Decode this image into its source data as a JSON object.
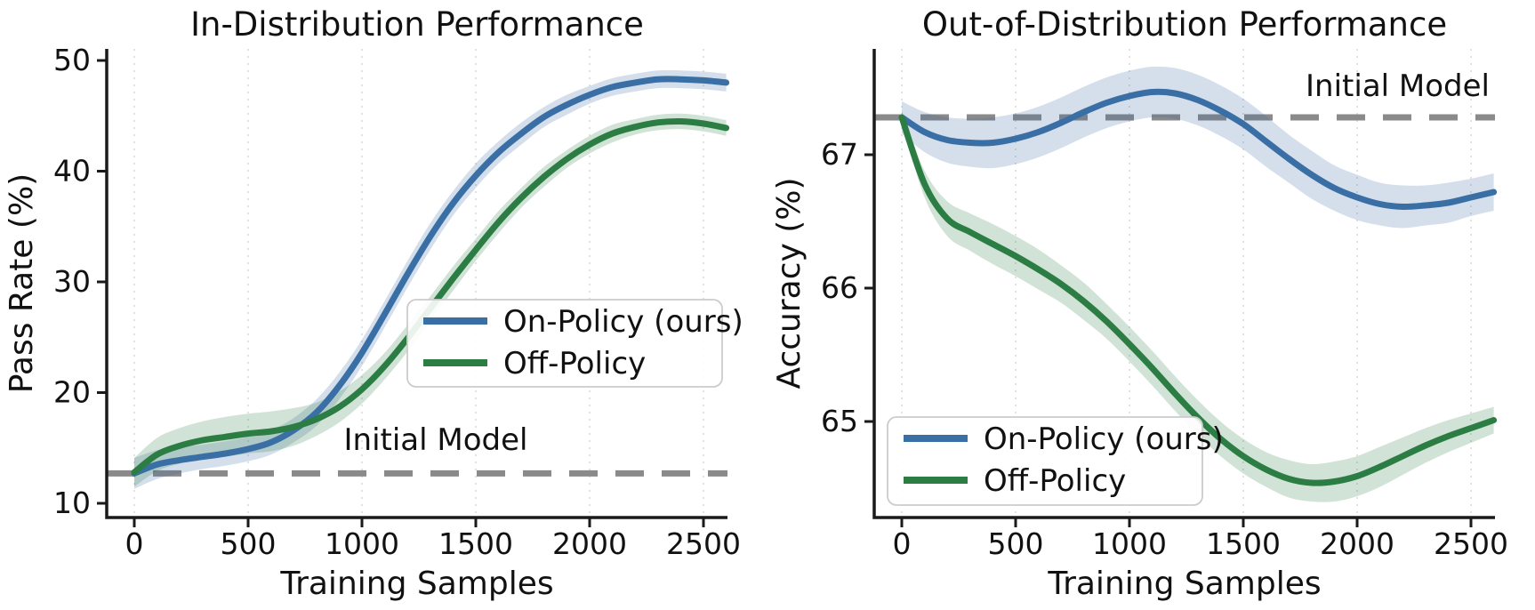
{
  "figure": {
    "background": "#ffffff",
    "description": "Two-panel line chart comparing on-policy and off-policy training"
  },
  "colors": {
    "on_policy": "#3A6FA5",
    "off_policy": "#2C7D43",
    "initial_model": "#8A8A8A",
    "grid": "#DBDBDB",
    "spine": "#1a1a1a",
    "text": "#111111",
    "legend_border": "#CCCCCC",
    "legend_background": "#FFFFFF"
  },
  "chart_data": [
    {
      "type": "line",
      "id": "in-distribution",
      "title": "In-Distribution Performance",
      "xlabel": "Training Samples",
      "ylabel": "Pass Rate (%)",
      "xticks": [
        0,
        500,
        1000,
        1500,
        2000,
        2500
      ],
      "yticks": [
        10,
        20,
        30,
        40,
        50
      ],
      "xlim": [
        -120,
        2605
      ],
      "ylim": [
        8.7,
        51.1
      ],
      "grid": "vertical-dotted",
      "legend_position": "center-right",
      "legend_entries": [
        "On-Policy (ours)",
        "Off-Policy"
      ],
      "annotation": {
        "text": "Initial Model",
        "value": 12.7
      },
      "x": [
        0,
        100,
        200,
        300,
        400,
        500,
        600,
        700,
        800,
        900,
        1000,
        1100,
        1200,
        1300,
        1400,
        1500,
        1600,
        1700,
        1800,
        1900,
        2000,
        2100,
        2200,
        2300,
        2400,
        2500,
        2600
      ],
      "series": [
        {
          "name": "On-Policy (ours)",
          "color_key": "on_policy",
          "y": [
            12.7,
            13.5,
            13.9,
            14.2,
            14.5,
            14.9,
            15.5,
            16.6,
            18.2,
            20.6,
            23.6,
            27.1,
            30.7,
            34.1,
            37.1,
            39.6,
            41.7,
            43.4,
            44.9,
            46.0,
            46.9,
            47.6,
            48.0,
            48.3,
            48.3,
            48.2,
            48.0
          ],
          "band_halfwidth": [
            1.4,
            1.3,
            1.2,
            1.1,
            1.1,
            1.1,
            1.1,
            1.1,
            1.2,
            1.2,
            1.2,
            1.2,
            1.2,
            1.2,
            1.1,
            1.1,
            1.0,
            1.0,
            0.9,
            0.9,
            0.8,
            0.8,
            0.8,
            0.8,
            0.8,
            0.8,
            0.8
          ]
        },
        {
          "name": "Off-Policy",
          "color_key": "off_policy",
          "y": [
            12.8,
            14.4,
            15.2,
            15.7,
            16.0,
            16.3,
            16.5,
            16.9,
            17.6,
            18.7,
            20.3,
            22.4,
            24.9,
            27.6,
            30.3,
            32.9,
            35.4,
            37.6,
            39.5,
            41.1,
            42.4,
            43.4,
            44.0,
            44.4,
            44.5,
            44.3,
            43.9
          ],
          "band_halfwidth": [
            1.3,
            1.5,
            1.6,
            1.7,
            1.8,
            1.8,
            1.8,
            1.7,
            1.5,
            1.4,
            1.3,
            1.2,
            1.2,
            1.1,
            1.1,
            1.0,
            1.0,
            0.9,
            0.9,
            0.8,
            0.8,
            0.8,
            0.7,
            0.7,
            0.7,
            0.7,
            0.7
          ]
        }
      ]
    },
    {
      "type": "line",
      "id": "out-of-distribution",
      "title": "Out-of-Distribution Performance",
      "xlabel": "Training Samples",
      "ylabel": "Accuracy (%)",
      "xticks": [
        0,
        500,
        1000,
        1500,
        2000,
        2500
      ],
      "yticks": [
        65,
        66,
        67
      ],
      "xlim": [
        -120,
        2605
      ],
      "ylim": [
        64.28,
        67.79
      ],
      "grid": "vertical-dotted",
      "legend_position": "lower-left",
      "legend_entries": [
        "On-Policy (ours)",
        "Off-Policy"
      ],
      "annotation": {
        "text": "Initial Model",
        "value": 67.28
      },
      "x": [
        0,
        100,
        200,
        300,
        400,
        500,
        600,
        700,
        800,
        900,
        1000,
        1100,
        1200,
        1300,
        1400,
        1500,
        1600,
        1700,
        1800,
        1900,
        2000,
        2100,
        2200,
        2300,
        2400,
        2500,
        2600
      ],
      "series": [
        {
          "name": "On-Policy (ours)",
          "color_key": "on_policy",
          "y": [
            67.28,
            67.17,
            67.11,
            67.09,
            67.09,
            67.12,
            67.17,
            67.24,
            67.32,
            67.39,
            67.44,
            67.47,
            67.46,
            67.41,
            67.33,
            67.23,
            67.1,
            66.97,
            66.85,
            66.75,
            66.68,
            66.63,
            66.61,
            66.62,
            66.64,
            66.68,
            66.72
          ],
          "band_halfwidth": [
            0.12,
            0.15,
            0.17,
            0.18,
            0.19,
            0.19,
            0.19,
            0.19,
            0.19,
            0.19,
            0.19,
            0.19,
            0.19,
            0.19,
            0.19,
            0.19,
            0.19,
            0.18,
            0.18,
            0.17,
            0.17,
            0.16,
            0.16,
            0.15,
            0.15,
            0.14,
            0.14
          ]
        },
        {
          "name": "Off-Policy",
          "color_key": "off_policy",
          "y": [
            67.28,
            66.78,
            66.52,
            66.42,
            66.33,
            66.24,
            66.14,
            66.03,
            65.9,
            65.75,
            65.58,
            65.4,
            65.21,
            65.03,
            64.87,
            64.74,
            64.64,
            64.57,
            64.54,
            64.55,
            64.59,
            64.66,
            64.74,
            64.82,
            64.89,
            64.95,
            65.01
          ],
          "band_halfwidth": [
            0.05,
            0.1,
            0.13,
            0.14,
            0.15,
            0.15,
            0.15,
            0.14,
            0.14,
            0.13,
            0.13,
            0.13,
            0.13,
            0.13,
            0.13,
            0.13,
            0.13,
            0.14,
            0.14,
            0.15,
            0.15,
            0.15,
            0.14,
            0.13,
            0.12,
            0.11,
            0.1
          ]
        }
      ]
    }
  ]
}
